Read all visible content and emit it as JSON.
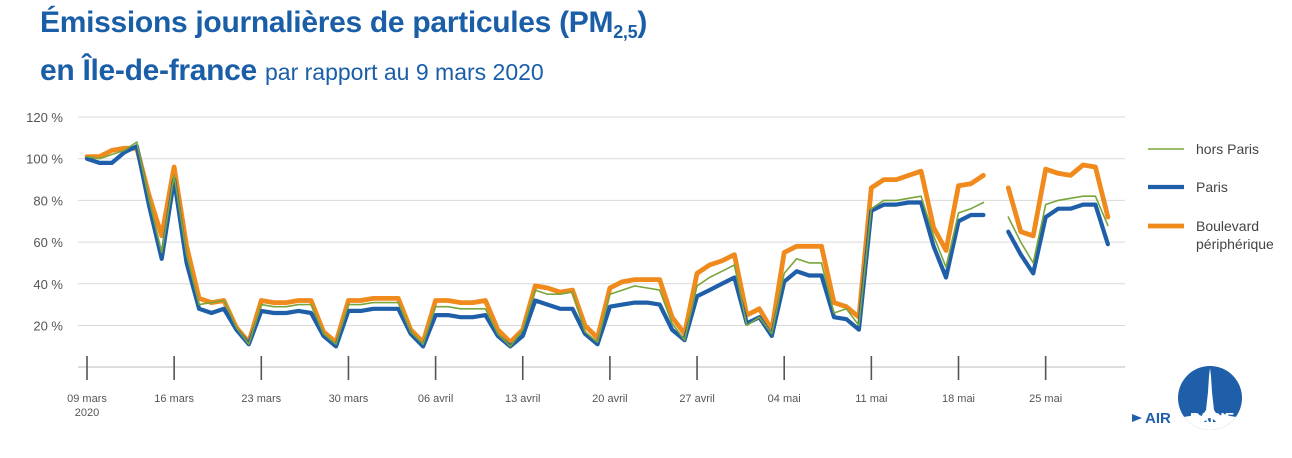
{
  "header": {
    "title_main": "Émissions journalières de particules (PM",
    "title_sub": "2,5",
    "title_close": ")",
    "title_line2": "en Île-de-france",
    "subtitle": "par rapport au 9 mars 2020"
  },
  "logo": {
    "text_left": "AIR",
    "text_right": "PARIF",
    "icon": "eiffel-tower-icon"
  },
  "colors": {
    "hors_paris": "#7aa53a",
    "paris": "#1f5ea8",
    "boulevard": "#f08a1c",
    "grid": "#d9d9d9",
    "axis_text": "#555555"
  },
  "chart_data": {
    "type": "line",
    "ylim": [
      0,
      120
    ],
    "yticks": [
      20,
      40,
      60,
      80,
      100,
      120
    ],
    "ytick_labels": [
      "20 %",
      "40 %",
      "60 %",
      "80 %",
      "100 %",
      "120 %"
    ],
    "xticks": [
      {
        "day": 0,
        "label": "09 mars",
        "label2": "2020"
      },
      {
        "day": 7,
        "label": "16 mars"
      },
      {
        "day": 14,
        "label": "23 mars"
      },
      {
        "day": 21,
        "label": "30 mars"
      },
      {
        "day": 28,
        "label": "06 avril"
      },
      {
        "day": 35,
        "label": "13 avril"
      },
      {
        "day": 42,
        "label": "20 avril"
      },
      {
        "day": 49,
        "label": "27 avril"
      },
      {
        "day": 56,
        "label": "04 mai"
      },
      {
        "day": 63,
        "label": "11 mai"
      },
      {
        "day": 70,
        "label": "18 mai"
      },
      {
        "day": 77,
        "label": "25 mai"
      }
    ],
    "legend_position": "right",
    "series": [
      {
        "name": "hors Paris",
        "color": "#7aa53a",
        "values": [
          101,
          100,
          102,
          104,
          108,
          80,
          55,
          92,
          54,
          30,
          31,
          32,
          19,
          11,
          30,
          29,
          29,
          30,
          30,
          16,
          11,
          30,
          30,
          31,
          31,
          31,
          17,
          11,
          29,
          29,
          28,
          28,
          28,
          16,
          10,
          18,
          37,
          35,
          35,
          36,
          17,
          12,
          35,
          37,
          39,
          38,
          37,
          21,
          13,
          39,
          43,
          46,
          49,
          20,
          24,
          16,
          45,
          52,
          50,
          50,
          26,
          28,
          20,
          76,
          80,
          80,
          81,
          82,
          63,
          48,
          74,
          76,
          79,
          null,
          72,
          60,
          50,
          78,
          80,
          81,
          82,
          82,
          68
        ]
      },
      {
        "name": "Paris",
        "color": "#1f5ea8",
        "values": [
          100,
          98,
          98,
          103,
          106,
          77,
          52,
          90,
          50,
          28,
          26,
          28,
          18,
          11,
          27,
          26,
          26,
          27,
          26,
          15,
          10,
          27,
          27,
          28,
          28,
          28,
          16,
          10,
          25,
          25,
          24,
          24,
          25,
          15,
          10,
          15,
          32,
          30,
          28,
          28,
          16,
          11,
          29,
          30,
          31,
          31,
          30,
          18,
          13,
          34,
          37,
          40,
          43,
          21,
          24,
          15,
          41,
          46,
          44,
          44,
          24,
          23,
          18,
          75,
          78,
          78,
          79,
          79,
          58,
          43,
          70,
          73,
          73,
          null,
          65,
          54,
          45,
          72,
          76,
          76,
          78,
          78,
          59
        ]
      },
      {
        "name": "Boulevard",
        "name_line2": "périphérique",
        "color": "#f08a1c",
        "values": [
          101,
          101,
          104,
          105,
          105,
          82,
          63,
          96,
          58,
          33,
          31,
          32,
          19,
          12,
          32,
          31,
          31,
          32,
          32,
          17,
          12,
          32,
          32,
          33,
          33,
          33,
          18,
          12,
          32,
          32,
          31,
          31,
          32,
          18,
          12,
          18,
          39,
          38,
          36,
          37,
          20,
          14,
          38,
          41,
          42,
          42,
          42,
          24,
          16,
          45,
          49,
          51,
          54,
          25,
          28,
          18,
          55,
          58,
          58,
          58,
          31,
          29,
          24,
          86,
          90,
          90,
          92,
          94,
          67,
          56,
          87,
          88,
          92,
          null,
          86,
          65,
          63,
          95,
          93,
          92,
          97,
          96,
          72
        ]
      }
    ]
  }
}
